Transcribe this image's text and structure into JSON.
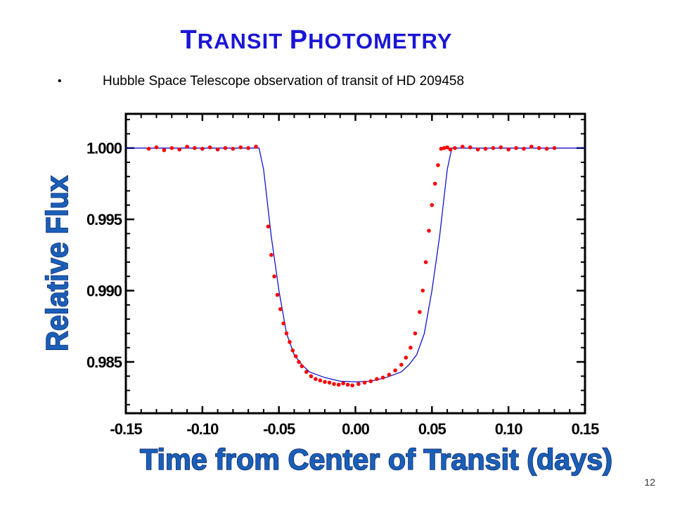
{
  "slide": {
    "title_first_letter_1": "T",
    "title_rest_1": "RANSIT",
    "title_first_letter_2": "P",
    "title_rest_2": "HOTOMETRY",
    "bullet_symbol": "•",
    "bullet_text": "Hubble Space Telescope observation of transit of HD 209458",
    "page_number": "12"
  },
  "colors": {
    "title": "#1a16d6",
    "axis_title": "#1a5fb8",
    "data_points": "#ff0000",
    "model_curve": "#1414c8"
  },
  "chart_data": {
    "type": "scatter",
    "xlabel": "Time from Center of Transit (days)",
    "ylabel": "Relative Flux",
    "xlim": [
      -0.15,
      0.15
    ],
    "ylim": [
      0.9814,
      1.0024
    ],
    "x_ticks": [
      "-0.15",
      "-0.10",
      "-0.05",
      "0.00",
      "0.05",
      "0.10",
      "0.15"
    ],
    "y_ticks": [
      "1.000",
      "0.995",
      "0.990",
      "0.985"
    ],
    "grid": false,
    "series": [
      {
        "kind": "points",
        "x": [
          -0.135,
          -0.13,
          -0.125,
          -0.12,
          -0.115,
          -0.11,
          -0.105,
          -0.1,
          -0.095,
          -0.09,
          -0.085,
          -0.08,
          -0.075,
          -0.07,
          -0.065,
          -0.057,
          -0.055,
          -0.053,
          -0.051,
          -0.049,
          -0.047,
          -0.045,
          -0.043,
          -0.041,
          -0.039,
          -0.037,
          -0.035,
          -0.032,
          -0.029,
          -0.026,
          -0.023,
          -0.02,
          -0.017,
          -0.014,
          -0.011,
          -0.008,
          -0.005,
          -0.002,
          0.002,
          0.006,
          0.01,
          0.014,
          0.018,
          0.022,
          0.026,
          0.03,
          0.033,
          0.036,
          0.039,
          0.042,
          0.044,
          0.046,
          0.048,
          0.05,
          0.052,
          0.054,
          0.056,
          0.058,
          0.06,
          0.062,
          0.065,
          0.07,
          0.075,
          0.08,
          0.085,
          0.09,
          0.095,
          0.1,
          0.105,
          0.11,
          0.115,
          0.12,
          0.125,
          0.13
        ],
        "y": [
          0.99995,
          1.00005,
          0.99985,
          1.0,
          0.9999,
          1.0001,
          1.0,
          0.99995,
          1.00005,
          0.9999,
          1.0,
          0.99995,
          1.00005,
          1.0,
          1.0001,
          0.9945,
          0.9925,
          0.991,
          0.9897,
          0.9887,
          0.9877,
          0.987,
          0.9864,
          0.9858,
          0.9854,
          0.985,
          0.9847,
          0.9843,
          0.984,
          0.9838,
          0.9837,
          0.9836,
          0.98355,
          0.98345,
          0.9834,
          0.9835,
          0.9834,
          0.98335,
          0.98345,
          0.98355,
          0.98365,
          0.9838,
          0.9839,
          0.9841,
          0.9844,
          0.9848,
          0.9853,
          0.986,
          0.987,
          0.9885,
          0.99,
          0.992,
          0.9942,
          0.996,
          0.9975,
          0.9988,
          0.99995,
          1.0,
          1.00005,
          0.9999,
          1.0,
          1.0001,
          1.00005,
          0.9999,
          0.99995,
          1.0,
          1.00005,
          0.9999,
          1.0,
          0.99995,
          1.0001,
          1.0,
          0.99995,
          1.0
        ]
      },
      {
        "kind": "model",
        "x": [
          -0.15,
          -0.063,
          -0.06,
          -0.055,
          -0.05,
          -0.045,
          -0.04,
          -0.035,
          -0.03,
          -0.02,
          -0.01,
          0.0,
          0.01,
          0.02,
          0.03,
          0.035,
          0.04,
          0.045,
          0.05,
          0.055,
          0.06,
          0.063,
          0.15
        ],
        "y": [
          1.0,
          1.0,
          0.9985,
          0.9938,
          0.99,
          0.987,
          0.9855,
          0.9848,
          0.9843,
          0.9839,
          0.98365,
          0.9836,
          0.98365,
          0.9839,
          0.9843,
          0.9848,
          0.9855,
          0.987,
          0.99,
          0.9938,
          0.9985,
          1.0,
          1.0
        ]
      }
    ]
  }
}
